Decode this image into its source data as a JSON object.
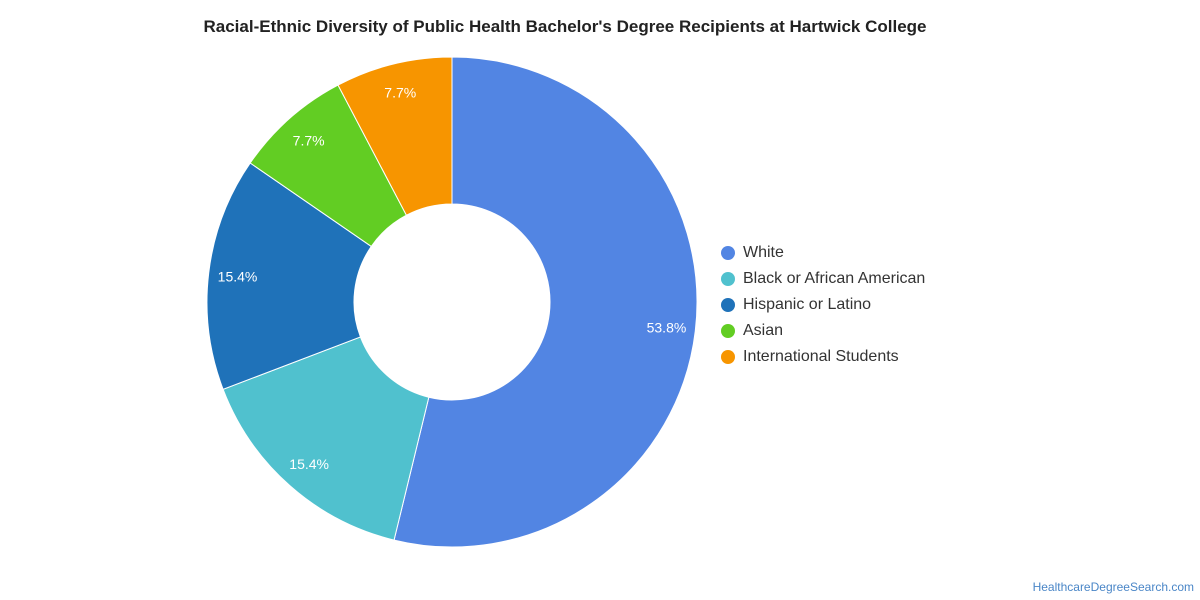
{
  "chart_data": {
    "type": "pie",
    "title": "Racial-Ethnic Diversity of Public Health Bachelor's Degree Recipients at Hartwick College",
    "donut": true,
    "legend_position": "right",
    "slices": [
      {
        "label": "White",
        "value": 53.8,
        "display": "53.8%",
        "color": "#5285e3"
      },
      {
        "label": "Black or African American",
        "value": 15.4,
        "display": "15.4%",
        "color": "#50c1ce"
      },
      {
        "label": "Hispanic or Latino",
        "value": 15.4,
        "display": "15.4%",
        "color": "#1f72b9"
      },
      {
        "label": "Asian",
        "value": 7.7,
        "display": "7.7%",
        "color": "#62cd23"
      },
      {
        "label": "International Students",
        "value": 7.7,
        "display": "7.7%",
        "color": "#f79500"
      }
    ]
  },
  "footer": {
    "source": "HealthcareDegreeSearch.com"
  }
}
